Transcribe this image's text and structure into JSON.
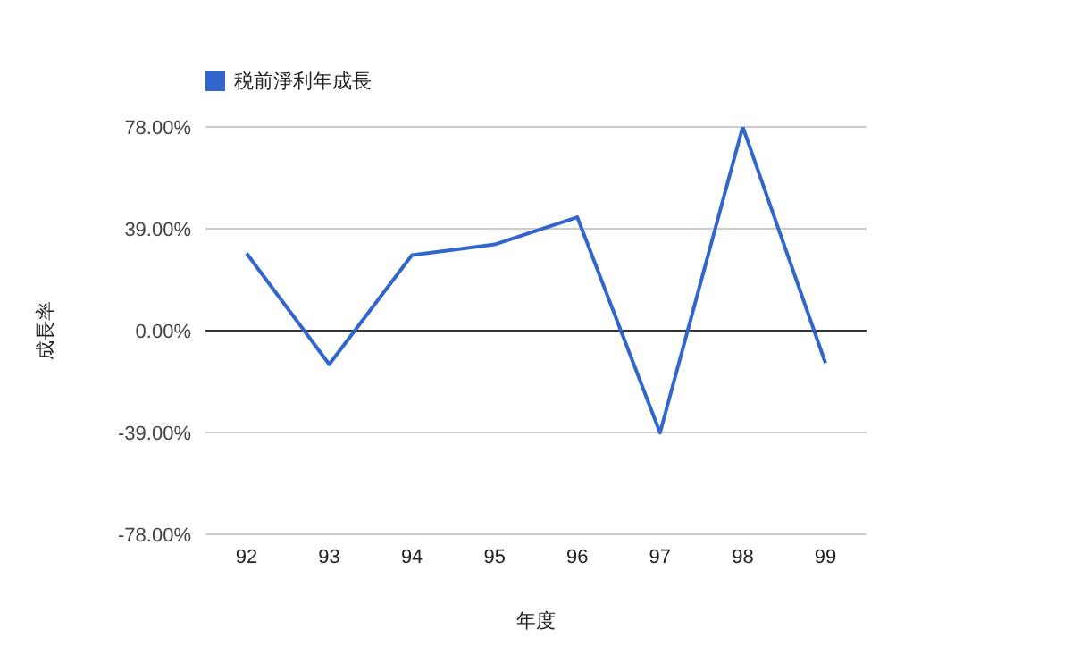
{
  "chart_data": {
    "type": "line",
    "xlabel": "年度",
    "ylabel": "成長率",
    "categories": [
      "92",
      "93",
      "94",
      "95",
      "96",
      "97",
      "98",
      "99"
    ],
    "series": [
      {
        "name": "税前淨利年成長",
        "color": "#3366cc",
        "values": [
          29.6,
          -12.9,
          28.9,
          33.0,
          43.4,
          -39.1,
          78,
          -12.4
        ]
      }
    ],
    "ylim": [
      -78,
      78
    ],
    "yticks": [
      {
        "value": -78,
        "label": "-78.00%"
      },
      {
        "value": -39,
        "label": "-39.00%"
      },
      {
        "value": 0,
        "label": "0.00%"
      },
      {
        "value": 39,
        "label": "39.00%"
      },
      {
        "value": 78,
        "label": "78.00%"
      }
    ],
    "ref_lines": [
      {
        "axis": "y",
        "value": 0,
        "color": "#333333"
      }
    ],
    "grid": "y",
    "legend": "top left",
    "marker": "none",
    "line_style": "solid"
  }
}
